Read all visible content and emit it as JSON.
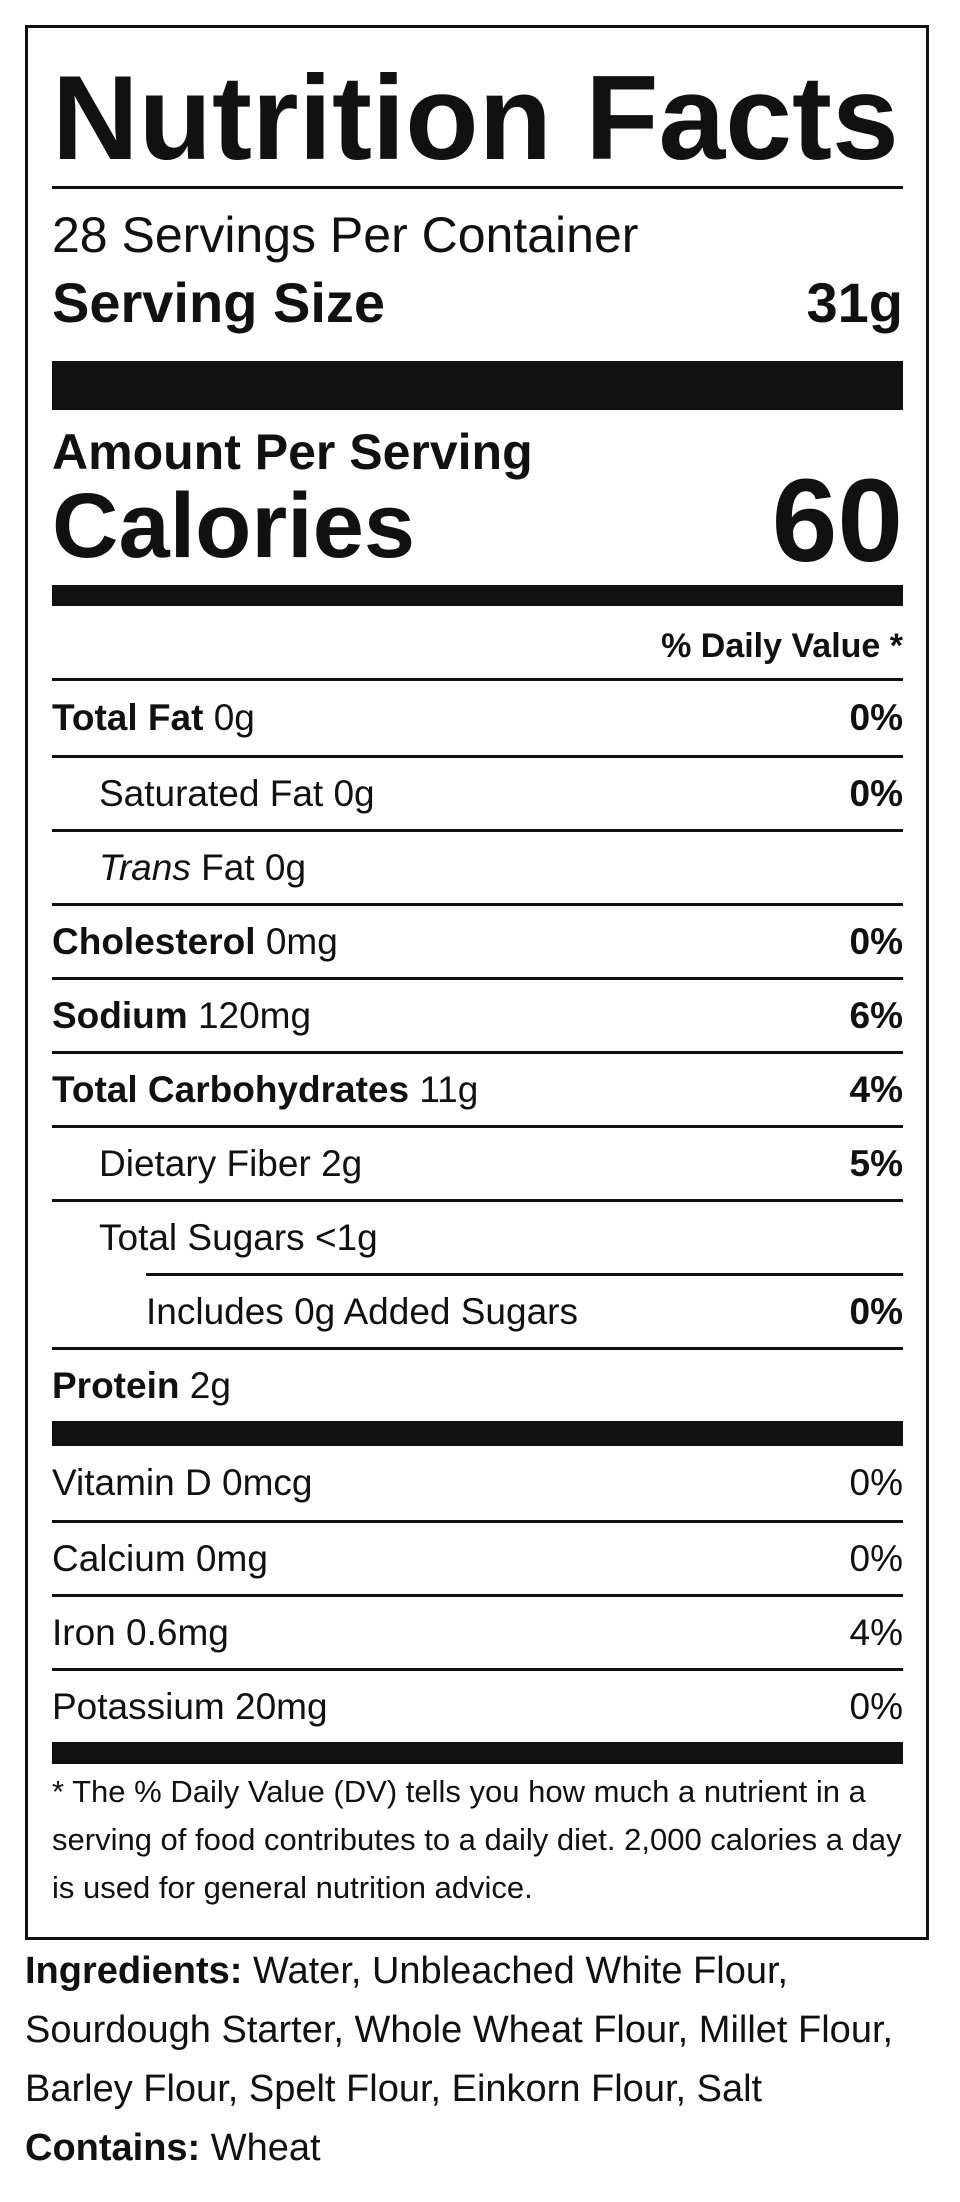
{
  "header": {
    "title": "Nutrition Facts",
    "servings": "28 Servings Per Container",
    "serving_size_label": "Serving Size",
    "serving_size": "31g"
  },
  "calories": {
    "heading": "Amount Per Serving",
    "label": "Calories",
    "value": "60"
  },
  "daily_value_header": "% Daily Value *",
  "nutrients": [
    {
      "name": "Total Fat",
      "amount": "0g",
      "dv": "0%",
      "sub": [
        {
          "name": "Saturated Fat",
          "amount": "0g",
          "dv": "0%"
        },
        {
          "name_italic": "Trans",
          "name": "Fat",
          "amount": "0g"
        }
      ]
    },
    {
      "name": "Cholesterol",
      "amount": "0mg",
      "dv": "0%"
    },
    {
      "name": "Sodium",
      "amount": "120mg",
      "dv": "6%"
    },
    {
      "name": "Total Carbohydrates",
      "amount": "11g",
      "dv": "4%",
      "sub": [
        {
          "name": "Dietary Fiber",
          "amount": "2g",
          "dv": "5%"
        },
        {
          "name": "Total Sugars",
          "amount": "<1g",
          "sub": [
            {
              "name": "Includes 0g Added Sugars",
              "dv": "0%"
            }
          ]
        }
      ]
    },
    {
      "name": "Protein",
      "amount": "2g"
    }
  ],
  "vitamins": [
    {
      "name": "Vitamin D",
      "amount": "0mcg",
      "dv": "0%"
    },
    {
      "name": "Calcium",
      "amount": "0mg",
      "dv": "0%"
    },
    {
      "name": "Iron",
      "amount": "0.6mg",
      "dv": "4%"
    },
    {
      "name": "Potassium",
      "amount": "20mg",
      "dv": "0%"
    }
  ],
  "footnote": "* The % Daily Value (DV) tells you how much a nutrient in a serving of food contributes to a daily diet. 2,000 calories a day is used for general nutrition advice.",
  "ingredients": {
    "label": "Ingredients:",
    "text": "Water, Unbleached White Flour, Sourdough Starter, Whole Wheat Flour, Millet Flour, Barley Flour, Spelt Flour, Einkorn Flour, Salt"
  },
  "contains": {
    "label": "Contains:",
    "text": "Wheat"
  }
}
